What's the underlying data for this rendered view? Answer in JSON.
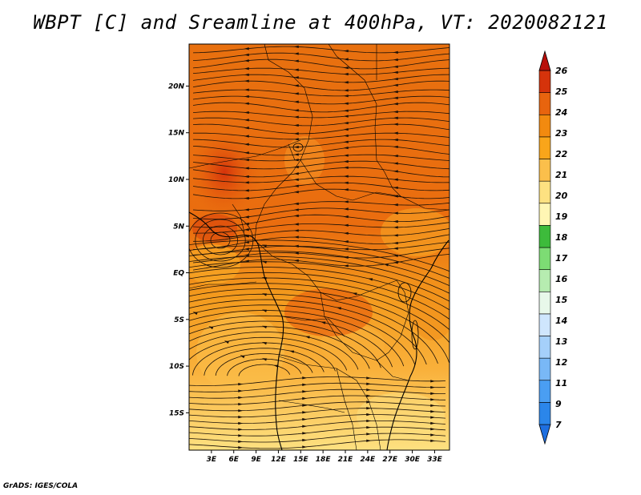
{
  "title": "WBPT [C] and Sreamline at 400hPa, VT: 2020082121",
  "credit": "GrADS: IGES/COLA",
  "map": {
    "lon_ticks": [
      "3E",
      "6E",
      "9E",
      "12E",
      "15E",
      "18E",
      "21E",
      "24E",
      "27E",
      "30E",
      "33E"
    ],
    "lat_ticks": [
      "20N",
      "15N",
      "10N",
      "5N",
      "EQ",
      "5S",
      "10S",
      "15S"
    ],
    "lon_range": [
      0,
      35
    ],
    "lat_range": [
      -19,
      24.5
    ]
  },
  "colorbar": {
    "labels": [
      "7",
      "9",
      "11",
      "12",
      "13",
      "14",
      "15",
      "16",
      "17",
      "18",
      "19",
      "20",
      "21",
      "22",
      "23",
      "24",
      "25",
      "26"
    ],
    "colors": [
      "#1e6fe0",
      "#2b86ea",
      "#4a9ef2",
      "#79b8f6",
      "#a5d0fa",
      "#cfe6fd",
      "#e8f8ea",
      "#b6ecb0",
      "#7ddc74",
      "#3dbb3b",
      "#fff6b4",
      "#fde181",
      "#fbbf4b",
      "#f9a51a",
      "#f28a0f",
      "#e8640e",
      "#d5330b",
      "#b80f0a"
    ]
  },
  "colors": {
    "hot": "#e8640e",
    "warm": "#f28a0f",
    "mid": "#f9a51a",
    "cool": "#fbbf4b",
    "coolest": "#fde181"
  }
}
